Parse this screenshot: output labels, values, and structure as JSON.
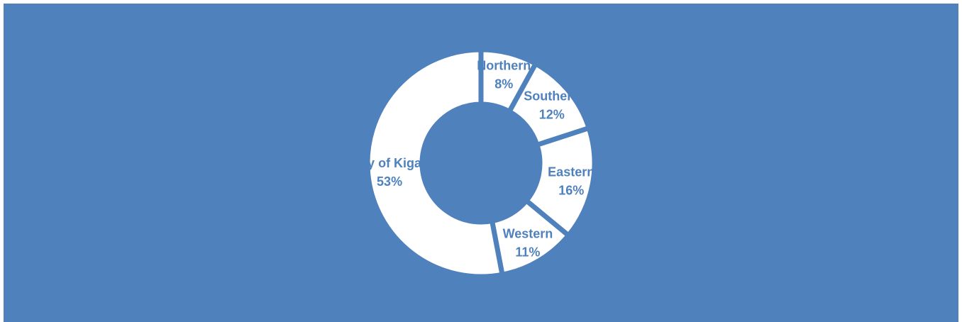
{
  "chart_data": {
    "type": "donut",
    "title": "",
    "categories": [
      "Northern",
      "Southern",
      "Eastern",
      "Western",
      "City of Kigali"
    ],
    "values": [
      8,
      12,
      16,
      11,
      53
    ],
    "value_labels": [
      "8%",
      "12%",
      "16%",
      "11%",
      "53%"
    ],
    "legend": "none",
    "colors": {
      "background": "#4f81bd",
      "slice": "#ffffff",
      "label": "#4f81bd"
    }
  }
}
